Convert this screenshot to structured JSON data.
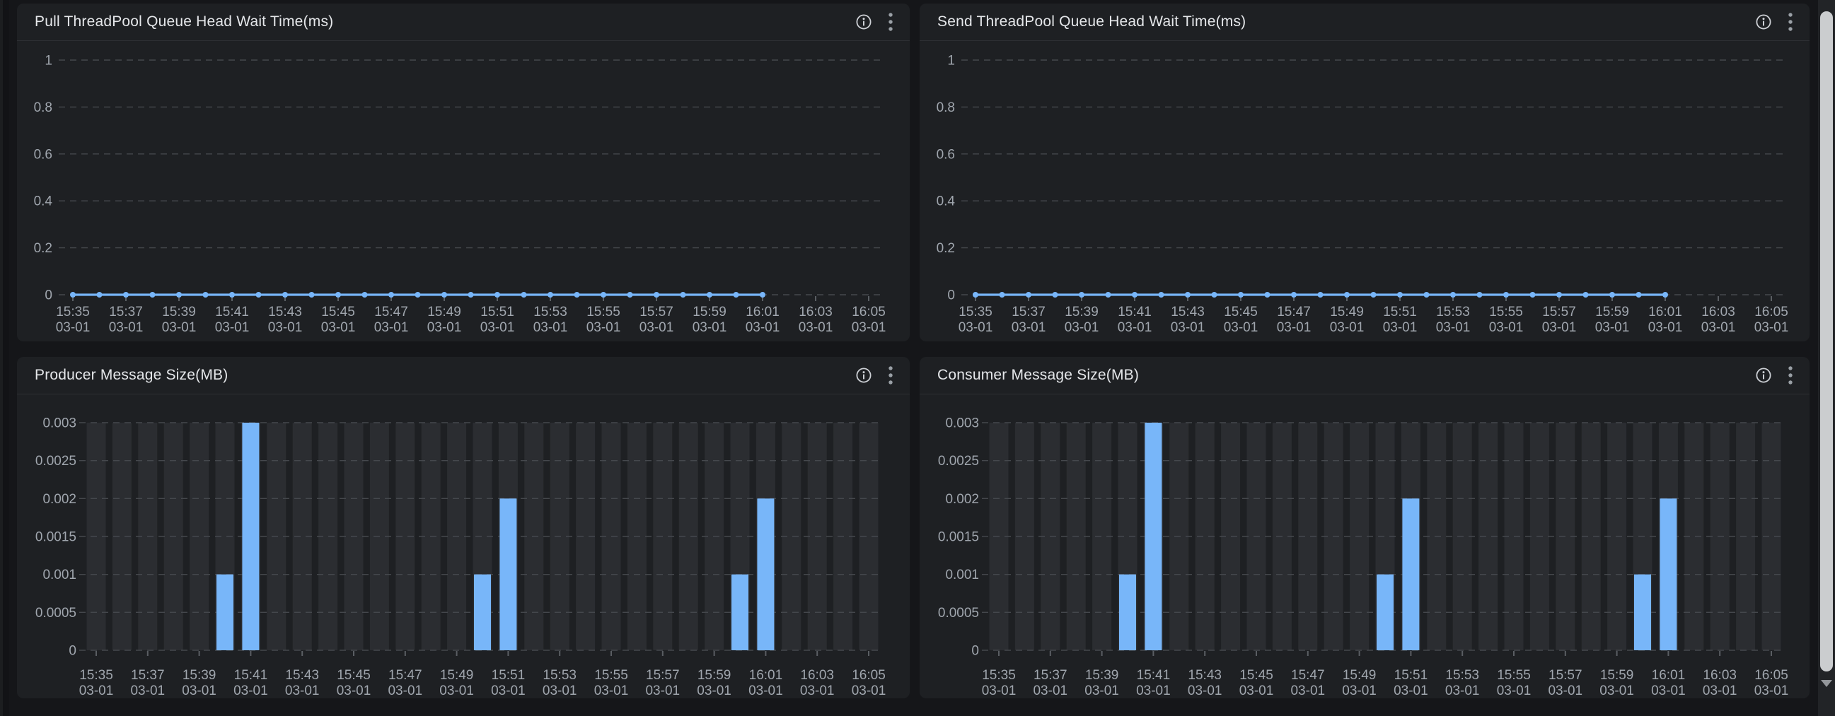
{
  "colors": {
    "page_bg": "#151619",
    "panel_bg": "#1e2023",
    "accent": "#78b6f9",
    "column_bg": "#2b2d31",
    "grid": "#45484d",
    "tick": "#5a5e63",
    "axis_text": "#a0a6ae",
    "title_text": "#e5e7ea",
    "icon_bright": "#ced1d6",
    "icon_dim": "#9aa0a6"
  },
  "icons": {
    "info_icon": "ⓘ",
    "kebab_menu_icon": "⋮",
    "scroll_down_arrow": "▼"
  },
  "chart_data": [
    {
      "type": "line",
      "title": "Pull ThreadPool Queue Head Wait Time(ms)",
      "x": [
        "15:35",
        "15:36",
        "15:37",
        "15:38",
        "15:39",
        "15:40",
        "15:41",
        "15:42",
        "15:43",
        "15:44",
        "15:45",
        "15:46",
        "15:47",
        "15:48",
        "15:49",
        "15:50",
        "15:51",
        "15:52",
        "15:53",
        "15:54",
        "15:55",
        "15:56",
        "15:57",
        "15:58",
        "15:59",
        "16:00",
        "16:01"
      ],
      "values": [
        0,
        0,
        0,
        0,
        0,
        0,
        0,
        0,
        0,
        0,
        0,
        0,
        0,
        0,
        0,
        0,
        0,
        0,
        0,
        0,
        0,
        0,
        0,
        0,
        0,
        0,
        0
      ],
      "ylim": [
        0,
        1
      ],
      "yticks": [
        0,
        0.2,
        0.4,
        0.6,
        0.8,
        1
      ],
      "ytick_labels": [
        "0",
        "0.2",
        "0.4",
        "0.6",
        "0.8",
        "1"
      ],
      "xtick_labels": [
        "15:35",
        "15:37",
        "15:39",
        "15:41",
        "15:43",
        "15:45",
        "15:47",
        "15:49",
        "15:51",
        "15:53",
        "15:55",
        "15:57",
        "15:59",
        "16:01",
        "16:03",
        "16:05"
      ],
      "xtick_sub_label": "03-01",
      "x_axis_range": [
        "15:35",
        "16:05"
      ],
      "grid": "dashed",
      "legend": "none"
    },
    {
      "type": "line",
      "title": "Send ThreadPool Queue Head Wait Time(ms)",
      "x": [
        "15:35",
        "15:36",
        "15:37",
        "15:38",
        "15:39",
        "15:40",
        "15:41",
        "15:42",
        "15:43",
        "15:44",
        "15:45",
        "15:46",
        "15:47",
        "15:48",
        "15:49",
        "15:50",
        "15:51",
        "15:52",
        "15:53",
        "15:54",
        "15:55",
        "15:56",
        "15:57",
        "15:58",
        "15:59",
        "16:00",
        "16:01"
      ],
      "values": [
        0,
        0,
        0,
        0,
        0,
        0,
        0,
        0,
        0,
        0,
        0,
        0,
        0,
        0,
        0,
        0,
        0,
        0,
        0,
        0,
        0,
        0,
        0,
        0,
        0,
        0,
        0
      ],
      "ylim": [
        0,
        1
      ],
      "yticks": [
        0,
        0.2,
        0.4,
        0.6,
        0.8,
        1
      ],
      "ytick_labels": [
        "0",
        "0.2",
        "0.4",
        "0.6",
        "0.8",
        "1"
      ],
      "xtick_labels": [
        "15:35",
        "15:37",
        "15:39",
        "15:41",
        "15:43",
        "15:45",
        "15:47",
        "15:49",
        "15:51",
        "15:53",
        "15:55",
        "15:57",
        "15:59",
        "16:01",
        "16:03",
        "16:05"
      ],
      "xtick_sub_label": "03-01",
      "x_axis_range": [
        "15:35",
        "16:05"
      ],
      "grid": "dashed",
      "legend": "none"
    },
    {
      "type": "bar",
      "title": "Producer Message Size(MB)",
      "categories": [
        "15:35",
        "15:36",
        "15:37",
        "15:38",
        "15:39",
        "15:40",
        "15:41",
        "15:42",
        "15:43",
        "15:44",
        "15:45",
        "15:46",
        "15:47",
        "15:48",
        "15:49",
        "15:50",
        "15:51",
        "15:52",
        "15:53",
        "15:54",
        "15:55",
        "15:56",
        "15:57",
        "15:58",
        "15:59",
        "16:00",
        "16:01",
        "16:02",
        "16:03",
        "16:04",
        "16:05"
      ],
      "values": [
        0,
        0,
        0,
        0,
        0,
        0.001,
        0.003,
        0,
        0,
        0,
        0,
        0,
        0,
        0,
        0,
        0.001,
        0.002,
        0,
        0,
        0,
        0,
        0,
        0,
        0,
        0,
        0.001,
        0.002,
        0,
        0,
        0,
        0
      ],
      "ylim": [
        0,
        0.003
      ],
      "yticks": [
        0,
        0.0005,
        0.001,
        0.0015,
        0.002,
        0.0025,
        0.003
      ],
      "ytick_labels": [
        "0",
        "0.0005",
        "0.001",
        "0.0015",
        "0.002",
        "0.0025",
        "0.003"
      ],
      "xtick_labels": [
        "15:35",
        "15:37",
        "15:39",
        "15:41",
        "15:43",
        "15:45",
        "15:47",
        "15:49",
        "15:51",
        "15:53",
        "15:55",
        "15:57",
        "15:59",
        "16:01",
        "16:03",
        "16:05"
      ],
      "xtick_sub_label": "03-01",
      "x_axis_range": [
        "15:35",
        "16:05"
      ],
      "grid": "dashed",
      "legend": "none",
      "background_columns": true
    },
    {
      "type": "bar",
      "title": "Consumer Message Size(MB)",
      "categories": [
        "15:35",
        "15:36",
        "15:37",
        "15:38",
        "15:39",
        "15:40",
        "15:41",
        "15:42",
        "15:43",
        "15:44",
        "15:45",
        "15:46",
        "15:47",
        "15:48",
        "15:49",
        "15:50",
        "15:51",
        "15:52",
        "15:53",
        "15:54",
        "15:55",
        "15:56",
        "15:57",
        "15:58",
        "15:59",
        "16:00",
        "16:01",
        "16:02",
        "16:03",
        "16:04",
        "16:05"
      ],
      "values": [
        0,
        0,
        0,
        0,
        0,
        0.001,
        0.003,
        0,
        0,
        0,
        0,
        0,
        0,
        0,
        0,
        0.001,
        0.002,
        0,
        0,
        0,
        0,
        0,
        0,
        0,
        0,
        0.001,
        0.002,
        0,
        0,
        0,
        0
      ],
      "ylim": [
        0,
        0.003
      ],
      "yticks": [
        0,
        0.0005,
        0.001,
        0.0015,
        0.002,
        0.0025,
        0.003
      ],
      "ytick_labels": [
        "0",
        "0.0005",
        "0.001",
        "0.0015",
        "0.002",
        "0.0025",
        "0.003"
      ],
      "xtick_labels": [
        "15:35",
        "15:37",
        "15:39",
        "15:41",
        "15:43",
        "15:45",
        "15:47",
        "15:49",
        "15:51",
        "15:53",
        "15:55",
        "15:57",
        "15:59",
        "16:01",
        "16:03",
        "16:05"
      ],
      "xtick_sub_label": "03-01",
      "x_axis_range": [
        "15:35",
        "16:05"
      ],
      "grid": "dashed",
      "legend": "none",
      "background_columns": true
    }
  ]
}
